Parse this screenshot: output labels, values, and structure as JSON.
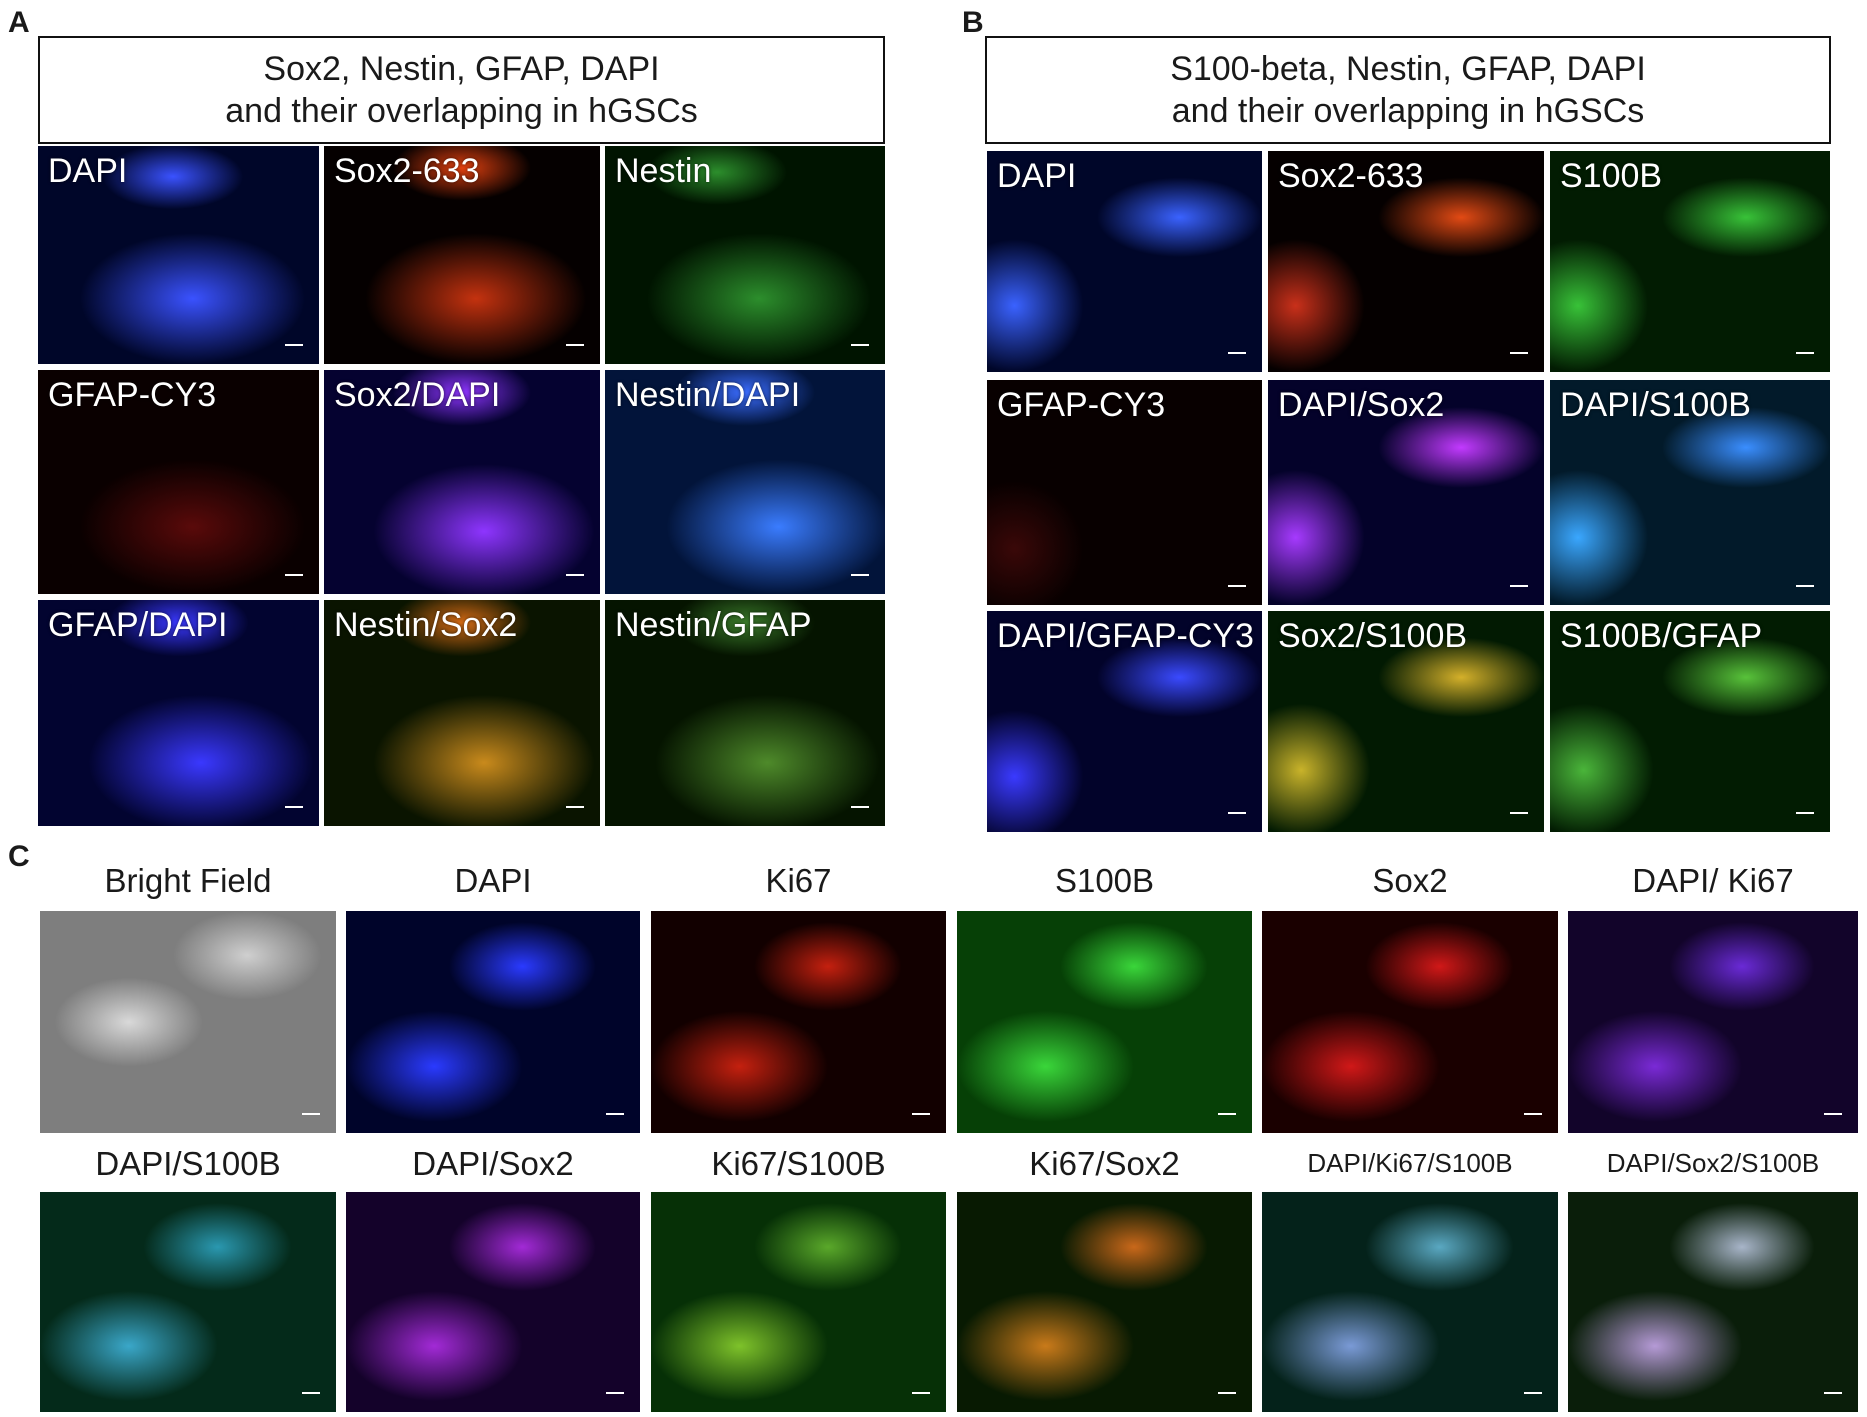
{
  "panel_a": {
    "letter": "A",
    "title_line1": "Sox2, Nestin, GFAP, DAPI",
    "title_line2": "and their overlapping in hGSCs",
    "tiles": [
      "DAPI",
      "Sox2-633",
      "Nestin",
      "GFAP-CY3",
      "Sox2/DAPI",
      "Nestin/DAPI",
      "GFAP/DAPI",
      "Nestin/Sox2",
      "Nestin/GFAP"
    ]
  },
  "panel_b": {
    "letter": "B",
    "title_line1": "S100-beta, Nestin, GFAP, DAPI",
    "title_line2": "and their overlapping in hGSCs",
    "tiles": [
      "DAPI",
      "Sox2-633",
      "S100B",
      "GFAP-CY3",
      "DAPI/Sox2",
      "DAPI/S100B",
      "DAPI/GFAP-CY3",
      "Sox2/S100B",
      "S100B/GFAP"
    ]
  },
  "panel_c": {
    "letter": "C",
    "row1": [
      "Bright Field",
      "DAPI",
      "Ki67",
      "S100B",
      "Sox2",
      "DAPI/ Ki67"
    ],
    "row2": [
      "DAPI/S100B",
      "DAPI/Sox2",
      "Ki67/S100B",
      "Ki67/Sox2",
      "DAPI/Ki67/S100B",
      "DAPI/Sox2/S100B"
    ]
  },
  "colors": {
    "blue": "#1a2bd6",
    "red": "#d42a14",
    "green": "#2fb52f",
    "magenta": "#9a2fd6",
    "orange": "#c9881c",
    "cyan": "#3aa7c9",
    "gray": "#8a8a8a"
  }
}
